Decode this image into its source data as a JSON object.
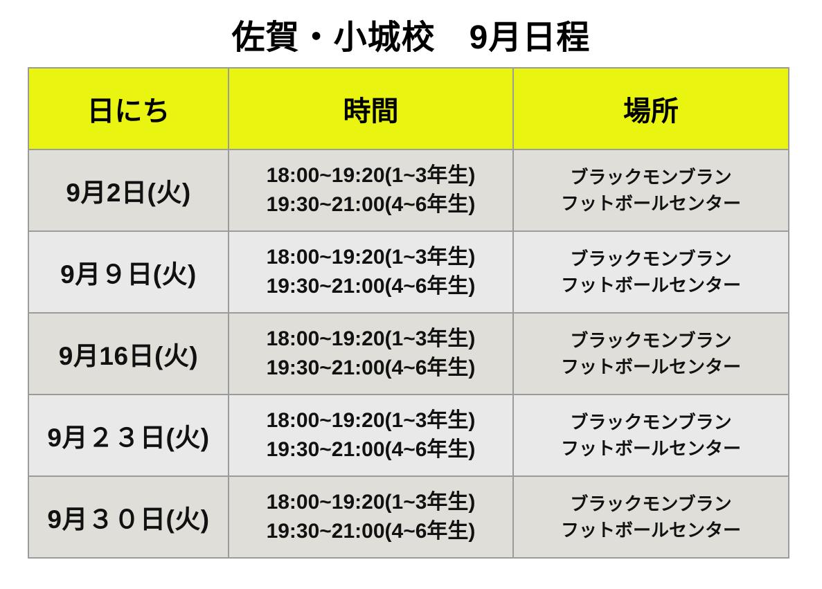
{
  "title": "佐賀・小城校　9月日程",
  "table": {
    "headers": {
      "date": "日にち",
      "time": "時間",
      "place": "場所"
    },
    "rows": [
      {
        "date": "9月2日(火)",
        "time_line1": "18:00~19:20(1~3年生)",
        "time_line2": "19:30~21:00(4~6年生)",
        "place_line1": "ブラックモンブラン",
        "place_line2": "フットボールセンター"
      },
      {
        "date": "9月９日(火)",
        "time_line1": "18:00~19:20(1~3年生)",
        "time_line2": "19:30~21:00(4~6年生)",
        "place_line1": "ブラックモンブラン",
        "place_line2": "フットボールセンター"
      },
      {
        "date": "9月16日(火)",
        "time_line1": "18:00~19:20(1~3年生)",
        "time_line2": "19:30~21:00(4~6年生)",
        "place_line1": "ブラックモンブラン",
        "place_line2": "フットボールセンター"
      },
      {
        "date": "9月２３日(火)",
        "time_line1": "18:00~19:20(1~3年生)",
        "time_line2": "19:30~21:00(4~6年生)",
        "place_line1": "ブラックモンブラン",
        "place_line2": "フットボールセンター"
      },
      {
        "date": "9月３０日(火)",
        "time_line1": "18:00~19:20(1~3年生)",
        "time_line2": "19:30~21:00(4~6年生)",
        "place_line1": "ブラックモンブラン",
        "place_line2": "フットボールセンター"
      }
    ]
  },
  "colors": {
    "header_bg": "#e9f511",
    "row_light": "#e9e9e9",
    "row_dark": "#dfded9",
    "border_color": "#9b9b9b",
    "text_color": "#111111"
  }
}
